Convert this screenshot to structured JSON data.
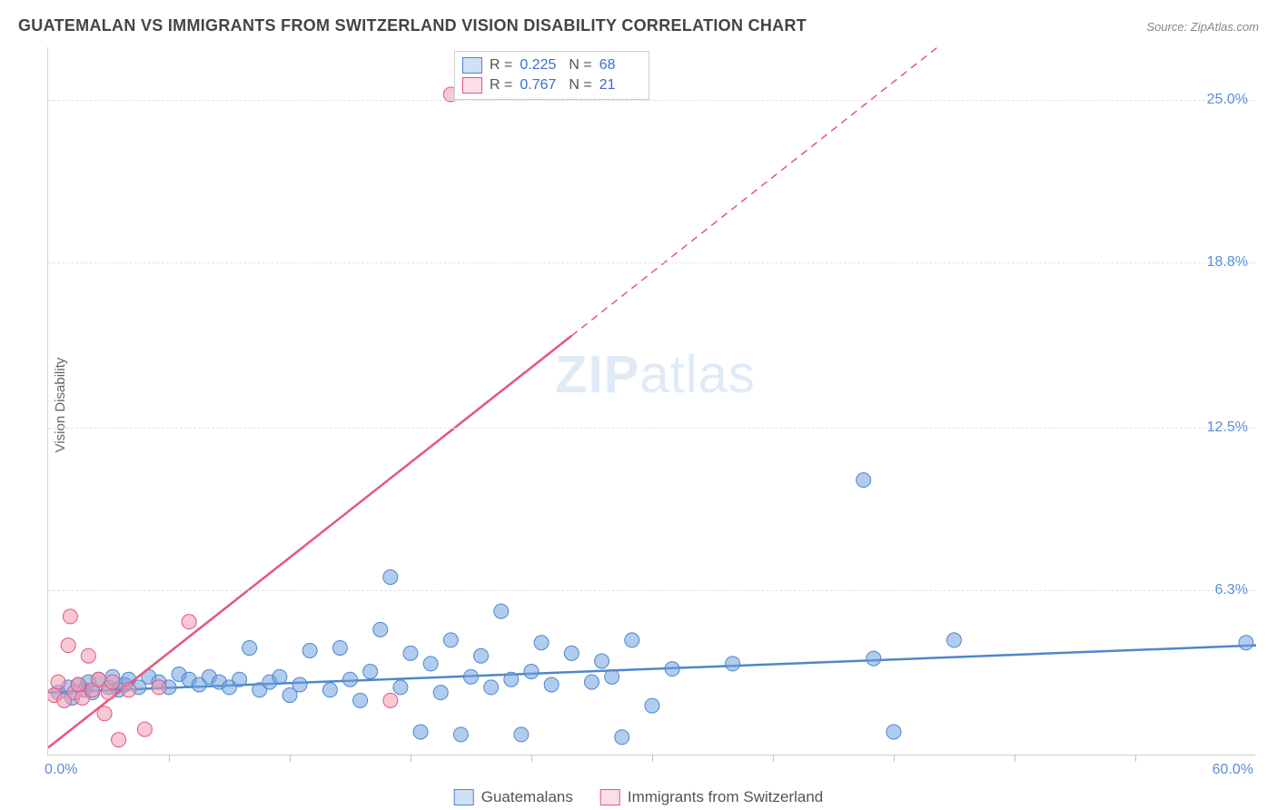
{
  "title": "GUATEMALAN VS IMMIGRANTS FROM SWITZERLAND VISION DISABILITY CORRELATION CHART",
  "source_label": "Source: ZipAtlas.com",
  "watermark": {
    "zip": "ZIP",
    "atlas": "atlas"
  },
  "ylabel": "Vision Disability",
  "chart": {
    "type": "scatter",
    "xlim": [
      0,
      60
    ],
    "ylim": [
      0,
      27
    ],
    "x_ticks_at": [
      6,
      12,
      18,
      24,
      30,
      36,
      42,
      48,
      54
    ],
    "x_min_label": "0.0%",
    "x_max_label": "60.0%",
    "y_gridlines": [
      6.3,
      12.5,
      18.8,
      25.0
    ],
    "y_labels": [
      "6.3%",
      "12.5%",
      "18.8%",
      "25.0%"
    ],
    "background_color": "#ffffff",
    "grid_color": "#e2e2e2",
    "axis_color": "#d0d0d0",
    "marker_radius": 8,
    "marker_opacity": 0.55,
    "series": [
      {
        "name": "Guatemalans",
        "color": "#6fa3e0",
        "stroke": "#4f86cc",
        "r_value": "0.225",
        "n_value": "68",
        "trend": {
          "x1": 0,
          "y1": 2.4,
          "x2": 60,
          "y2": 4.2,
          "width": 2.5,
          "dash": "",
          "extrapolate": false
        },
        "points": [
          [
            0.5,
            2.4
          ],
          [
            1.0,
            2.6
          ],
          [
            1.2,
            2.2
          ],
          [
            1.5,
            2.7
          ],
          [
            1.8,
            2.5
          ],
          [
            2.0,
            2.8
          ],
          [
            2.2,
            2.4
          ],
          [
            2.5,
            2.9
          ],
          [
            3.0,
            2.6
          ],
          [
            3.2,
            3.0
          ],
          [
            3.5,
            2.5
          ],
          [
            3.8,
            2.7
          ],
          [
            4.0,
            2.9
          ],
          [
            4.5,
            2.6
          ],
          [
            5.0,
            3.0
          ],
          [
            5.5,
            2.8
          ],
          [
            6.0,
            2.6
          ],
          [
            6.5,
            3.1
          ],
          [
            7.0,
            2.9
          ],
          [
            7.5,
            2.7
          ],
          [
            8.0,
            3.0
          ],
          [
            8.5,
            2.8
          ],
          [
            9.0,
            2.6
          ],
          [
            9.5,
            2.9
          ],
          [
            10.0,
            4.1
          ],
          [
            10.5,
            2.5
          ],
          [
            11.0,
            2.8
          ],
          [
            11.5,
            3.0
          ],
          [
            12.0,
            2.3
          ],
          [
            12.5,
            2.7
          ],
          [
            13.0,
            4.0
          ],
          [
            14.0,
            2.5
          ],
          [
            14.5,
            4.1
          ],
          [
            15.0,
            2.9
          ],
          [
            15.5,
            2.1
          ],
          [
            16.0,
            3.2
          ],
          [
            16.5,
            4.8
          ],
          [
            17.0,
            6.8
          ],
          [
            17.5,
            2.6
          ],
          [
            18.0,
            3.9
          ],
          [
            18.5,
            0.9
          ],
          [
            19.0,
            3.5
          ],
          [
            19.5,
            2.4
          ],
          [
            20.0,
            4.4
          ],
          [
            20.5,
            0.8
          ],
          [
            21.0,
            3.0
          ],
          [
            21.5,
            3.8
          ],
          [
            22.0,
            2.6
          ],
          [
            22.5,
            5.5
          ],
          [
            23.0,
            2.9
          ],
          [
            23.5,
            0.8
          ],
          [
            24.0,
            3.2
          ],
          [
            24.5,
            4.3
          ],
          [
            25.0,
            2.7
          ],
          [
            26.0,
            3.9
          ],
          [
            27.0,
            2.8
          ],
          [
            27.5,
            3.6
          ],
          [
            28.0,
            3.0
          ],
          [
            28.5,
            0.7
          ],
          [
            29.0,
            4.4
          ],
          [
            30.0,
            1.9
          ],
          [
            31.0,
            3.3
          ],
          [
            34.0,
            3.5
          ],
          [
            40.5,
            10.5
          ],
          [
            41.0,
            3.7
          ],
          [
            42.0,
            0.9
          ],
          [
            45.0,
            4.4
          ],
          [
            59.5,
            4.3
          ]
        ]
      },
      {
        "name": "Immigrants from Switzerland",
        "color": "#f29bb3",
        "stroke": "#e4567f",
        "r_value": "0.767",
        "n_value": "21",
        "trend": {
          "x1": 0,
          "y1": 0.3,
          "x2": 26,
          "y2": 16.0,
          "width": 2.5,
          "dash": "",
          "extrapolate": true,
          "ex_x2": 45,
          "ex_y2": 27.5,
          "ex_dash": "8 6"
        },
        "points": [
          [
            0.3,
            2.3
          ],
          [
            0.5,
            2.8
          ],
          [
            0.8,
            2.1
          ],
          [
            1.0,
            4.2
          ],
          [
            1.1,
            5.3
          ],
          [
            1.3,
            2.4
          ],
          [
            1.5,
            2.7
          ],
          [
            1.7,
            2.2
          ],
          [
            2.0,
            3.8
          ],
          [
            2.2,
            2.5
          ],
          [
            2.5,
            2.9
          ],
          [
            2.8,
            1.6
          ],
          [
            3.0,
            2.4
          ],
          [
            3.2,
            2.8
          ],
          [
            3.5,
            0.6
          ],
          [
            4.0,
            2.5
          ],
          [
            4.8,
            1.0
          ],
          [
            5.5,
            2.6
          ],
          [
            7.0,
            5.1
          ],
          [
            17.0,
            2.1
          ],
          [
            20.0,
            25.2
          ]
        ]
      }
    ]
  },
  "stats_box": {
    "r_label": "R =",
    "n_label": "N ="
  },
  "legend": {
    "series1": "Guatemalans",
    "series2": "Immigrants from Switzerland"
  }
}
